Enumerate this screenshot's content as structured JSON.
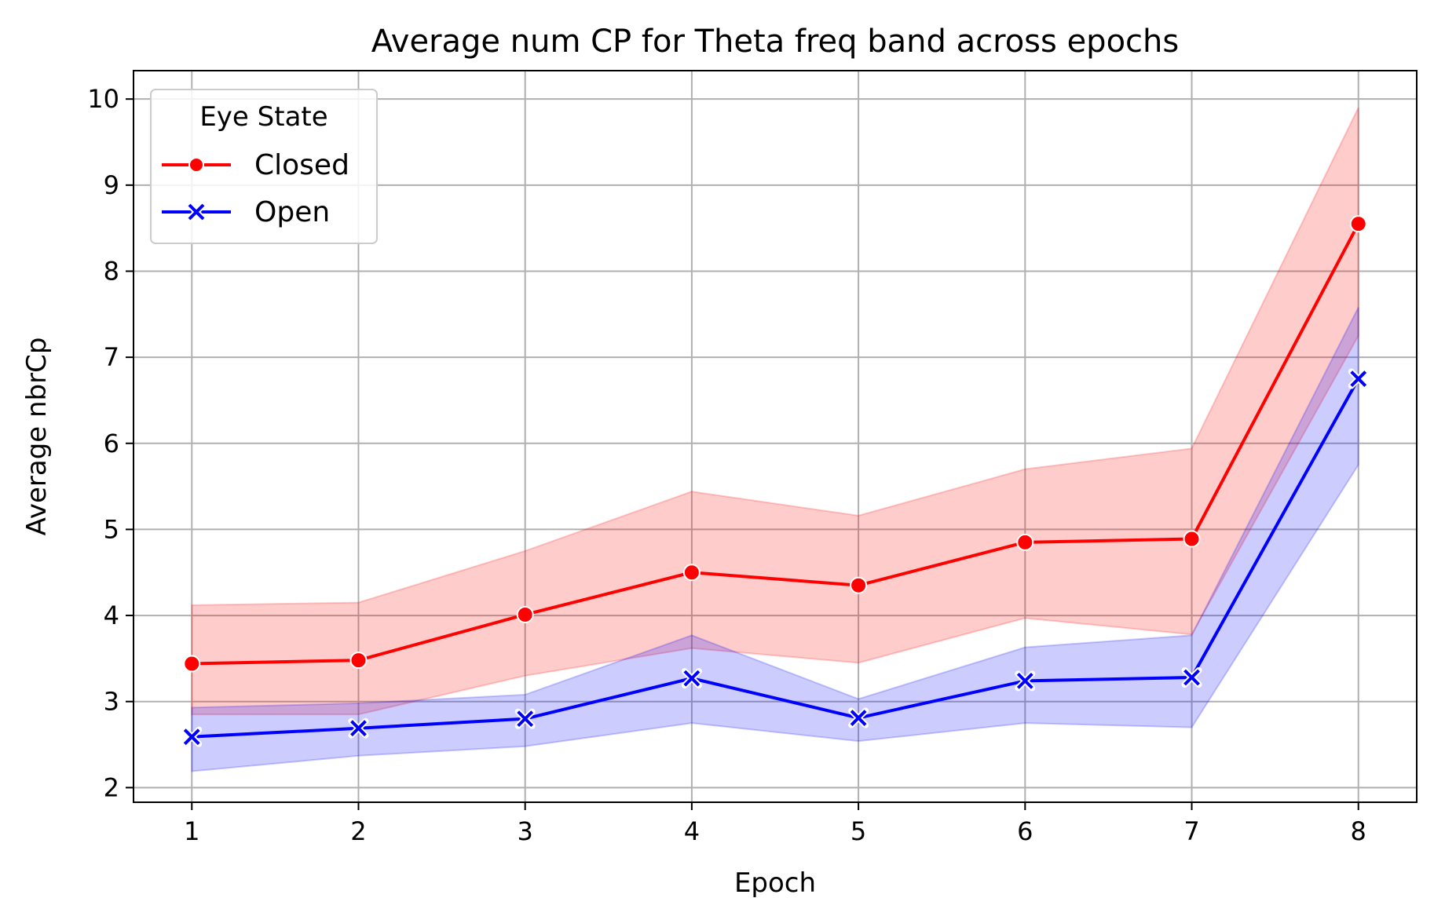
{
  "chart_data": {
    "type": "line",
    "title": "Average num CP for Theta freq band across epochs",
    "xlabel": "Epoch",
    "ylabel": "Average nbrCp",
    "x": [
      1,
      2,
      3,
      4,
      5,
      6,
      7,
      8
    ],
    "x_ticks": [
      "1",
      "2",
      "3",
      "4",
      "5",
      "6",
      "7",
      "8"
    ],
    "y_ticks": [
      "2",
      "3",
      "4",
      "5",
      "6",
      "7",
      "8",
      "9",
      "10"
    ],
    "xlim": [
      0.65,
      8.35
    ],
    "ylim": [
      1.83,
      10.33
    ],
    "grid": true,
    "legend": {
      "title": "Eye State",
      "placement": "top-left"
    },
    "series": [
      {
        "name": "Closed",
        "color": "#ff0000",
        "marker": "circle",
        "values": [
          3.44,
          3.48,
          4.01,
          4.5,
          4.35,
          4.85,
          4.89,
          8.55
        ],
        "ci_lower": [
          2.85,
          2.85,
          3.3,
          3.62,
          3.45,
          3.97,
          3.78,
          7.25
        ],
        "ci_upper": [
          4.12,
          4.15,
          4.75,
          5.44,
          5.16,
          5.7,
          5.94,
          9.9
        ]
      },
      {
        "name": "Open",
        "color": "#0000ff",
        "marker": "x",
        "values": [
          2.59,
          2.69,
          2.8,
          3.27,
          2.81,
          3.24,
          3.28,
          6.75
        ],
        "ci_lower": [
          2.19,
          2.37,
          2.48,
          2.75,
          2.54,
          2.75,
          2.7,
          5.75
        ],
        "ci_upper": [
          2.93,
          2.98,
          3.08,
          3.77,
          3.03,
          3.63,
          3.77,
          7.58
        ]
      }
    ]
  }
}
